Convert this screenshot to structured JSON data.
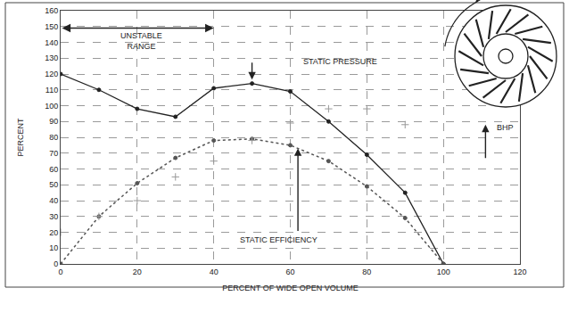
{
  "chart_data": {
    "type": "line",
    "x_label": "PERCENT OF WIDE OPEN VOLUME",
    "y_label": "PERCENT",
    "x": [
      0,
      10,
      20,
      30,
      40,
      50,
      60,
      70,
      80,
      90,
      100
    ],
    "series": [
      {
        "name": "STATIC PRESSURE",
        "color": "#222222",
        "marker": "circle",
        "line_style": "solid",
        "values": [
          120,
          110,
          98,
          93,
          111,
          114,
          109,
          90,
          69,
          45,
          0
        ]
      },
      {
        "name": "STATIC EFFICIENCY",
        "color": "#555555",
        "marker": "circle",
        "line_style": "dotted",
        "values": [
          0,
          30,
          51,
          67,
          78,
          79,
          75,
          65,
          49,
          29,
          0
        ]
      },
      {
        "name": "BHP",
        "color": "#999999",
        "marker": "cross",
        "line_style": "none",
        "values": [
          20,
          30,
          40,
          55,
          65,
          78,
          89,
          98,
          98,
          88,
          null
        ]
      }
    ],
    "annotations": [
      {
        "text": "UNSTABLE\nRANGE"
      },
      {
        "text": "STATIC PRESSURE"
      },
      {
        "text": "STATIC EFFICIENCY"
      },
      {
        "text": "BHP"
      }
    ],
    "xlim": [
      0,
      120
    ],
    "xticks": [
      0,
      20,
      40,
      60,
      80,
      100,
      120
    ],
    "ylim": [
      0,
      160
    ],
    "yticks": [
      0,
      10,
      20,
      30,
      40,
      50,
      60,
      70,
      80,
      90,
      100,
      110,
      120,
      130,
      140,
      150,
      160
    ],
    "grid": true
  }
}
